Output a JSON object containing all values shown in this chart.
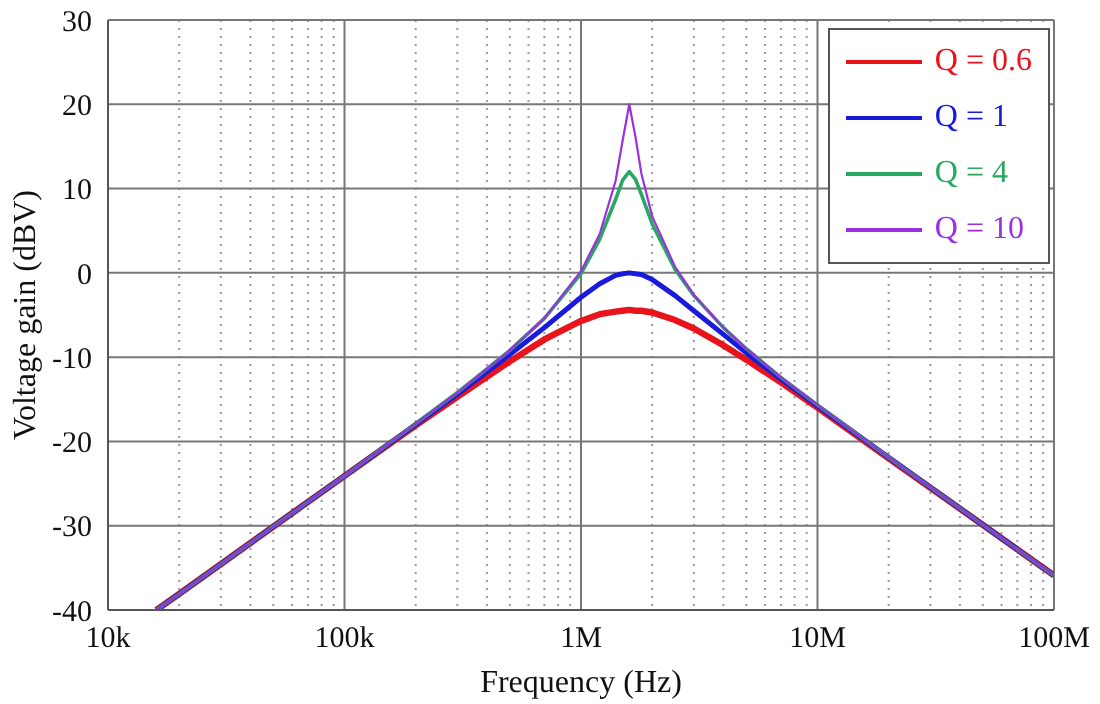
{
  "chart_data": {
    "type": "line",
    "xlabel": "Frequency (Hz)",
    "ylabel": "Voltage gain (dBV)",
    "log": "x",
    "grid": true,
    "legend": "top right",
    "xlim": [
      10000,
      100000000
    ],
    "ylim": [
      -40,
      30
    ],
    "xticks": [
      {
        "value": 10000,
        "label": "10k"
      },
      {
        "value": 20000,
        "label": null
      },
      {
        "value": 30000,
        "label": null
      },
      {
        "value": 40000,
        "label": null
      },
      {
        "value": 50000,
        "label": null
      },
      {
        "value": 60000,
        "label": null
      },
      {
        "value": 70000,
        "label": null
      },
      {
        "value": 80000,
        "label": null
      },
      {
        "value": 90000,
        "label": null
      },
      {
        "value": 100000,
        "label": "100k"
      },
      {
        "value": 200000,
        "label": null
      },
      {
        "value": 300000,
        "label": null
      },
      {
        "value": 400000,
        "label": null
      },
      {
        "value": 500000,
        "label": null
      },
      {
        "value": 600000,
        "label": null
      },
      {
        "value": 700000,
        "label": null
      },
      {
        "value": 800000,
        "label": null
      },
      {
        "value": 900000,
        "label": null
      },
      {
        "value": 1000000,
        "label": "1M"
      },
      {
        "value": 2000000,
        "label": null
      },
      {
        "value": 3000000,
        "label": null
      },
      {
        "value": 4000000,
        "label": null
      },
      {
        "value": 5000000,
        "label": null
      },
      {
        "value": 6000000,
        "label": null
      },
      {
        "value": 7000000,
        "label": null
      },
      {
        "value": 8000000,
        "label": null
      },
      {
        "value": 9000000,
        "label": null
      },
      {
        "value": 10000000,
        "label": "10M"
      },
      {
        "value": 20000000,
        "label": null
      },
      {
        "value": 30000000,
        "label": null
      },
      {
        "value": 40000000,
        "label": null
      },
      {
        "value": 50000000,
        "label": null
      },
      {
        "value": 60000000,
        "label": null
      },
      {
        "value": 70000000,
        "label": null
      },
      {
        "value": 80000000,
        "label": null
      },
      {
        "value": 90000000,
        "label": null
      },
      {
        "value": 100000000,
        "label": "100M"
      }
    ],
    "yticks": [
      -40,
      -30,
      -20,
      -10,
      0,
      10,
      20,
      30
    ],
    "x": [
      16000,
      20000,
      50000,
      100000,
      200000,
      300000,
      500000,
      700000,
      1000000,
      1200000,
      1400000,
      1500000,
      1600000,
      1700000,
      1800000,
      2000000,
      2500000,
      3000000,
      4000000,
      5000000,
      7000000,
      10000000,
      20000000,
      50000000,
      100000000
    ],
    "series": [
      {
        "name": "Q = 0.6",
        "color": "#e8141c",
        "values": [
          -40.0,
          -38.1,
          -30.1,
          -24.1,
          -18.1,
          -14.7,
          -10.5,
          -7.9,
          -5.7,
          -4.9,
          -4.6,
          -4.5,
          -4.4,
          -4.5,
          -4.5,
          -4.7,
          -5.6,
          -6.6,
          -8.6,
          -10.3,
          -13.0,
          -16.0,
          -22.0,
          -29.9,
          -35.9
        ]
      },
      {
        "name": "Q = 1",
        "color": "#1a1adc",
        "values": [
          -40.0,
          -38.1,
          -30.1,
          -24.1,
          -18.0,
          -14.4,
          -9.7,
          -6.5,
          -2.9,
          -1.3,
          -0.3,
          -0.1,
          0,
          -0.1,
          -0.2,
          -0.8,
          -2.7,
          -4.5,
          -7.3,
          -9.5,
          -12.6,
          -15.8,
          -21.9,
          -29.9,
          -35.9
        ]
      },
      {
        "name": "Q = 4",
        "color": "#28a860",
        "values": [
          -40.0,
          -38.1,
          -30.1,
          -24.1,
          -17.9,
          -14.2,
          -9.2,
          -5.4,
          -0.1,
          4.0,
          8.7,
          11.0,
          12.0,
          11.1,
          9.3,
          5.8,
          0.4,
          -2.7,
          -6.5,
          -9.0,
          -12.4,
          -15.7,
          -21.9,
          -29.9,
          -35.9
        ]
      },
      {
        "name": "Q = 10",
        "color": "#9a30e0",
        "values": [
          -40.0,
          -38.1,
          -30.1,
          -24.1,
          -17.9,
          -14.2,
          -9.2,
          -5.4,
          0.2,
          4.6,
          10.9,
          15.7,
          20.0,
          16.1,
          11.8,
          6.7,
          0.7,
          -2.6,
          -6.5,
          -9.0,
          -12.4,
          -15.7,
          -21.9,
          -29.9,
          -35.9
        ]
      }
    ]
  }
}
